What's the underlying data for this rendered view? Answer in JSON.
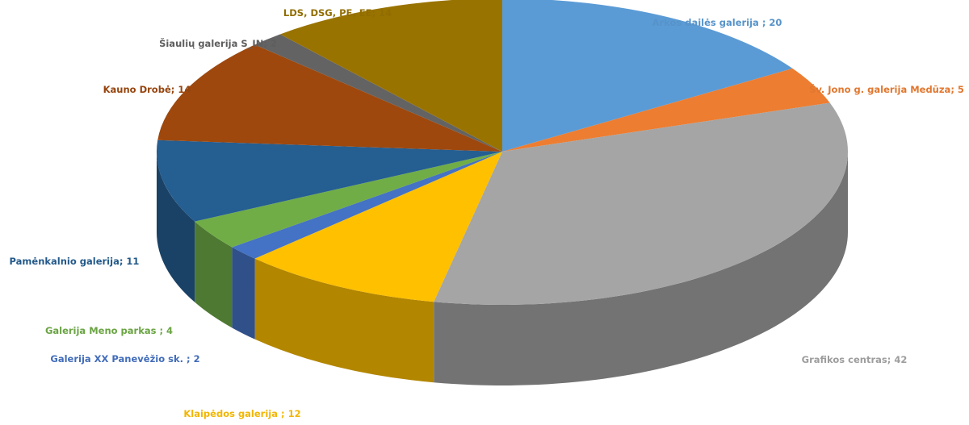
{
  "chart_data": {
    "type": "pie",
    "title": "",
    "style": "3d",
    "start": "12 o'clock",
    "direction": "clockwise",
    "slices": [
      {
        "label": "Arkos dailės galerija ; 20",
        "name": "Arkos dailės galerija",
        "value": 20,
        "color": "#5b9bd5"
      },
      {
        "label": "Šv. Jono g. galerija Medūza; 5",
        "name": "Šv. Jono g. galerija Medūza",
        "value": 5,
        "color": "#ed7d31"
      },
      {
        "label": "Grafikos centras; 42",
        "name": "Grafikos centras",
        "value": 42,
        "color": "#a5a5a5"
      },
      {
        "label": "Klaipėdos galerija ; 12",
        "name": "Klaipėdos galerija",
        "value": 12,
        "color": "#ffc000"
      },
      {
        "label": "Galerija XX Panevėžio sk. ; 2",
        "name": "Galerija XX Panevėžio sk.",
        "value": 2,
        "color": "#4472c4"
      },
      {
        "label": "Galerija Meno parkas ; 4",
        "name": "Galerija Meno parkas",
        "value": 4,
        "color": "#70ad47"
      },
      {
        "label": "Pamėnkalnio galerija; 11",
        "name": "Pamėnkalnio galerija",
        "value": 11,
        "color": "#255e91"
      },
      {
        "label": "Kauno Drobė; 14",
        "name": "Kauno Drobė",
        "value": 14,
        "color": "#9e480e"
      },
      {
        "label": "Šiaulių galerija S_IN; 2",
        "name": "Šiaulių galerija S_IN",
        "value": 2,
        "color": "#636363"
      },
      {
        "label": "LDS, DSG, PE, EE; 14",
        "name": "LDS, DSG, PE, EE",
        "value": 14,
        "color": "#997300"
      }
    ]
  }
}
